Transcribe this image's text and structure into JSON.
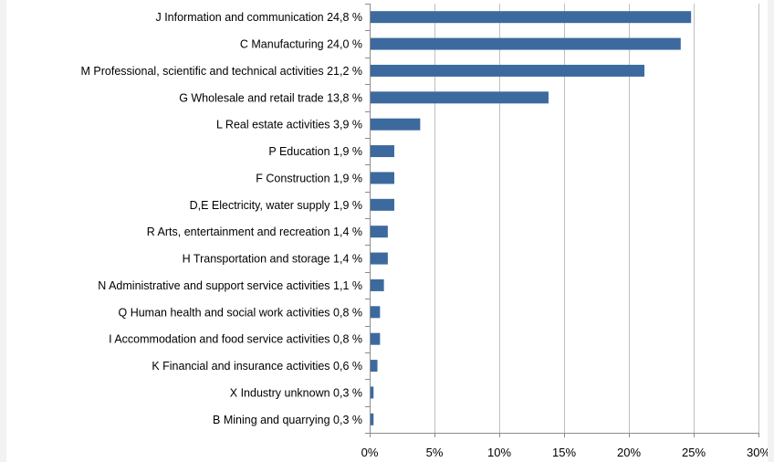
{
  "chart_data": {
    "type": "bar",
    "orientation": "horizontal",
    "categories": [
      "J Information and communication 24,8 %",
      "C Manufacturing 24,0 %",
      "M Professional, scientific and technical activities 21,2 %",
      "G  Wholesale and retail trade 13,8 %",
      "L Real estate activities 3,9 %",
      "P Education 1,9 %",
      "F Construction 1,9 %",
      "D,E Electricity, water supply 1,9 %",
      "R Arts, entertainment and recreation 1,4 %",
      "H Transportation and storage 1,4 %",
      "N Administrative and support service activities 1,1 %",
      "Q Human health and social work activities 0,8 %",
      "I Accommodation and food service activities 0,8 %",
      "K Financial and insurance activities 0,6 %",
      "X Industry unknown 0,3 %",
      "B Mining and quarrying 0,3 %"
    ],
    "values": [
      24.8,
      24.0,
      21.2,
      13.8,
      3.9,
      1.9,
      1.9,
      1.9,
      1.4,
      1.4,
      1.1,
      0.8,
      0.8,
      0.6,
      0.3,
      0.3
    ],
    "xlim": [
      0,
      30
    ],
    "xticks": [
      0,
      5,
      10,
      15,
      20,
      25,
      30
    ],
    "xtick_labels": [
      "0%",
      "5%",
      "10%",
      "15%",
      "20%",
      "25%",
      "30%"
    ],
    "title": "",
    "xlabel": "",
    "ylabel": "",
    "grid": "vertical",
    "legend": "none",
    "colors": {
      "bar": "#3d6a9e",
      "grid": "#bfbfbf",
      "axis": "#8c8c8c"
    }
  }
}
